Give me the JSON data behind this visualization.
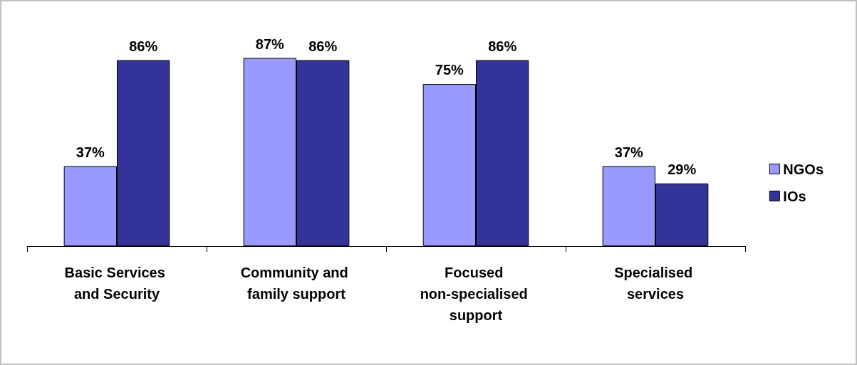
{
  "chart_data": {
    "type": "bar",
    "categories": [
      "Basic Services and Security",
      "Community and family support",
      "Focused non-specialised support",
      "Specialised services"
    ],
    "series": [
      {
        "name": "NGOs",
        "color": "#9999ff",
        "values": [
          37,
          87,
          75,
          37
        ],
        "value_labels": [
          "37%",
          "87%",
          "75%",
          "37%"
        ]
      },
      {
        "name": "IOs",
        "color": "#333399",
        "values": [
          86,
          86,
          86,
          29
        ],
        "value_labels": [
          "86%",
          "86%",
          "86%",
          "29%"
        ]
      }
    ],
    "legend": "right"
  }
}
